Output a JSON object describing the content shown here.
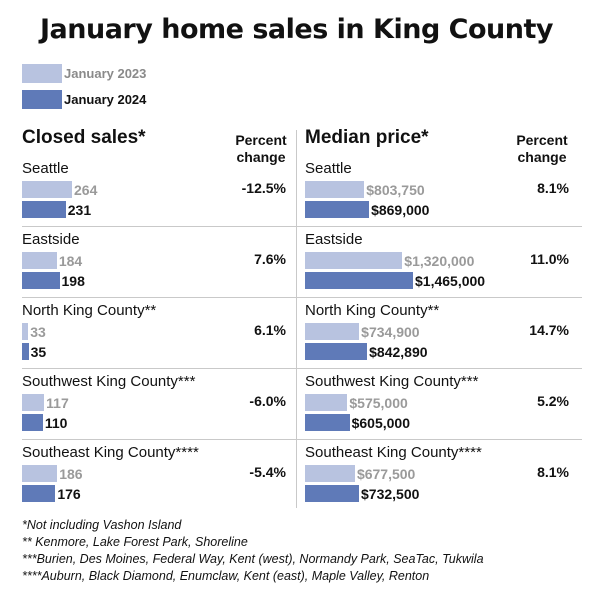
{
  "title": "January home sales in King County",
  "legend": [
    {
      "label": "January 2023",
      "color": "#b8c3e0"
    },
    {
      "label": "January 2024",
      "color": "#5f7ab8"
    }
  ],
  "chart_data": [
    {
      "type": "bar",
      "title": "Closed sales*",
      "change_header": "Percent change",
      "categories": [
        "Seattle",
        "Eastside",
        "North King County**",
        "Southwest King County***",
        "Southeast King County****"
      ],
      "series": [
        {
          "name": "January 2023",
          "values": [
            264,
            184,
            33,
            117,
            186
          ],
          "labels": [
            "264",
            "184",
            "33",
            "117",
            "186"
          ]
        },
        {
          "name": "January 2024",
          "values": [
            231,
            198,
            35,
            110,
            176
          ],
          "labels": [
            "231",
            "198",
            "35",
            "110",
            "176"
          ]
        }
      ],
      "percent_change": [
        "-12.5%",
        "7.6%",
        "6.1%",
        "-6.0%",
        "-5.4%"
      ]
    },
    {
      "type": "bar",
      "title": "Median price*",
      "change_header": "Percent change",
      "categories": [
        "Seattle",
        "Eastside",
        "North King County**",
        "Southwest King County***",
        "Southeast King County****"
      ],
      "series": [
        {
          "name": "January 2023",
          "values": [
            803750,
            1320000,
            734900,
            575000,
            677500
          ],
          "labels": [
            "$803,750",
            "$1,320,000",
            "$734,900",
            "$575,000",
            "$677,500"
          ]
        },
        {
          "name": "January 2024",
          "values": [
            869000,
            1465000,
            842890,
            605000,
            732500
          ],
          "labels": [
            "$869,000",
            "$1,465,000",
            "$842,890",
            "$605,000",
            "$732,500"
          ]
        }
      ],
      "percent_change": [
        "8.1%",
        "11.0%",
        "14.7%",
        "5.2%",
        "8.1%"
      ]
    }
  ],
  "footnotes": [
    "*Not including Vashon Island",
    "** Kenmore, Lake Forest Park, Shoreline",
    "***Burien, Des Moines, Federal Way, Kent (west), Normandy Park, SeaTac, Tukwila",
    "****Auburn, Black Diamond, Enumclaw, Kent (east), Maple Valley, Renton"
  ]
}
